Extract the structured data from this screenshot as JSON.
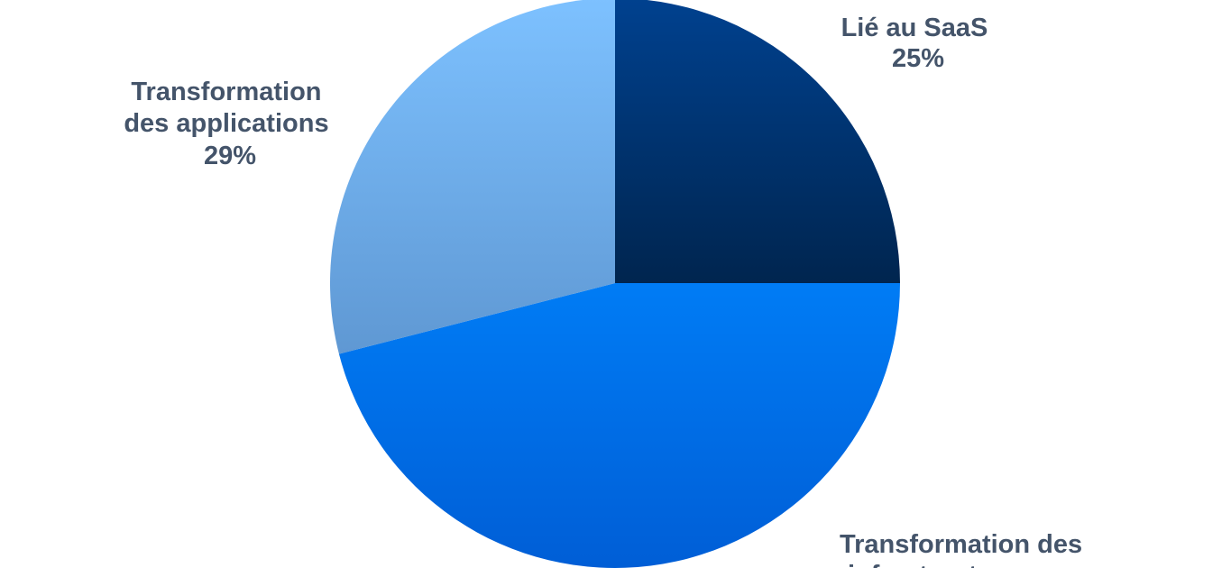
{
  "chart_data": {
    "type": "pie",
    "start_angle_deg": 0,
    "direction": "clockwise",
    "slices": [
      {
        "label": "Lié au SaaS",
        "value": 25,
        "value_label": "25%",
        "color_top": "#00418f",
        "color_bottom": "#00254f"
      },
      {
        "label": "Transformation des infrastructures",
        "value": 46,
        "value_label": "46%",
        "color_top": "#007cf5",
        "color_bottom": "#005ed6"
      },
      {
        "label": "Transformation des applications",
        "value": 29,
        "value_label": "29%",
        "color_top": "#7dc1ff",
        "color_bottom": "#5f98d3"
      }
    ]
  }
}
